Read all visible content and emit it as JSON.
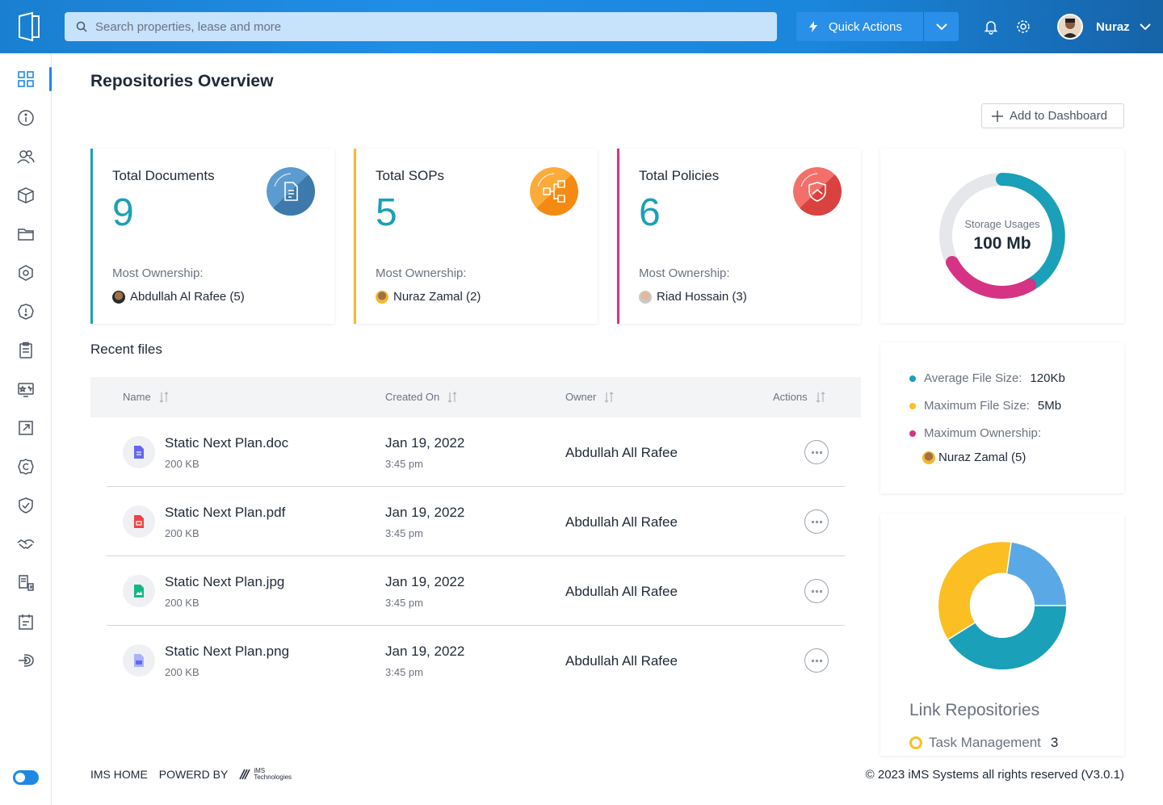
{
  "topbar": {
    "search_placeholder": "Search properties, lease and more",
    "quick_actions_label": "Quick Actions",
    "username": "Nuraz"
  },
  "sidebar": {
    "items": [
      "dashboard",
      "info",
      "users",
      "package",
      "folder",
      "settings-hex",
      "alert",
      "clipboard",
      "ticket",
      "external-link",
      "copyright",
      "shield-check",
      "handshake",
      "documents",
      "calendar",
      "exit"
    ]
  },
  "main": {
    "title": "Repositories Overview",
    "add_to_dashboard_label": "Add to Dashboard",
    "cards": [
      {
        "title": "Total Documents",
        "count": "9",
        "ownership_label": "Most Ownership:",
        "owner": "Abdullah Al Rafee (5)",
        "accent": "#1aa0b8"
      },
      {
        "title": "Total SOPs",
        "count": "5",
        "ownership_label": "Most Ownership:",
        "owner": "Nuraz Zamal (2)",
        "accent": "#f5b82e"
      },
      {
        "title": "Total Policies",
        "count": "6",
        "ownership_label": "Most Ownership:",
        "owner": "Riad Hossain (3)",
        "accent": "#d63384"
      }
    ],
    "storage": {
      "label": "Storage Usages",
      "value": "100 Mb"
    },
    "stats": {
      "avg_label": "Average File Size:",
      "avg_value": "120Kb",
      "max_label": "Maximum File Size:",
      "max_value": "5Mb",
      "owner_label": "Maximum Ownership:",
      "owner_value": "Nuraz Zamal (5)"
    },
    "link_repositories": {
      "title": "Link Repositories",
      "item_label": "Task Management",
      "item_count": "3"
    },
    "recent_files": {
      "title": "Recent files",
      "columns": [
        "Name",
        "Created On",
        "Owner",
        "Actions"
      ],
      "rows": [
        {
          "name": "Static Next Plan.doc",
          "size": "200 KB",
          "date": "Jan 19, 2022",
          "time": "3:45 pm",
          "owner": "Abdullah All Rafee",
          "type": "doc"
        },
        {
          "name": "Static Next Plan.pdf",
          "size": "200 KB",
          "date": "Jan 19, 2022",
          "time": "3:45 pm",
          "owner": "Abdullah All Rafee",
          "type": "pdf"
        },
        {
          "name": "Static Next Plan.jpg",
          "size": "200 KB",
          "date": "Jan 19, 2022",
          "time": "3:45 pm",
          "owner": "Abdullah All Rafee",
          "type": "jpg"
        },
        {
          "name": "Static Next Plan.png",
          "size": "200 KB",
          "date": "Jan 19, 2022",
          "time": "3:45 pm",
          "owner": "Abdullah All Rafee",
          "type": "png"
        }
      ]
    }
  },
  "footer": {
    "home": "IMS HOME",
    "powered": "POWERD BY",
    "brand_line1": "iMS",
    "brand_line2": "Technologies",
    "copyright": "© 2023 iMS Systems all rights reserved (V3.0.1)"
  },
  "colors": {
    "teal": "#1aa0b8",
    "yellow": "#fbbf24",
    "pink": "#d63384",
    "blue": "#4a9ee6"
  }
}
